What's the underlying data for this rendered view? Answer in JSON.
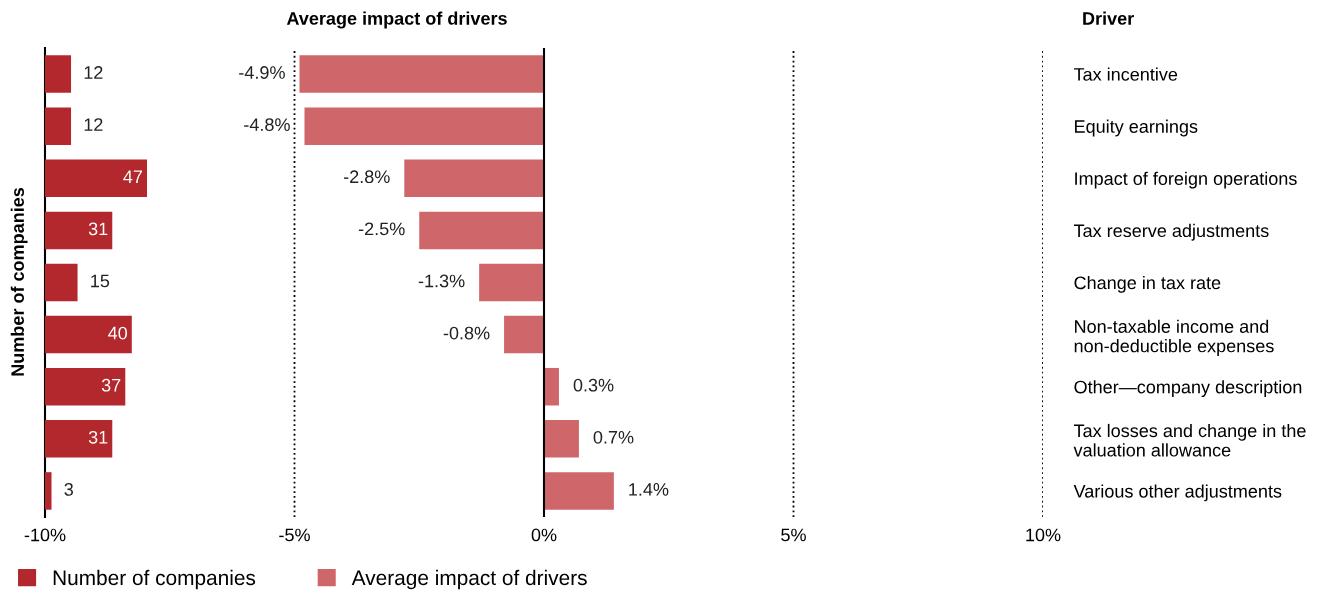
{
  "chart_data": [
    {
      "type": "bar",
      "orientation": "horizontal",
      "ylabel": "Number of companies",
      "legend": "bottom",
      "categories": [
        null,
        null,
        null,
        null,
        null,
        null,
        null,
        null,
        null
      ],
      "series": [
        {
          "name": "Number of companies",
          "color": "#b3282d",
          "values": [
            12,
            12,
            47,
            31,
            15,
            40,
            37,
            31,
            3
          ],
          "value_labels": [
            "12",
            "12",
            "47",
            "31",
            "15",
            "40",
            "37",
            "31",
            "3"
          ]
        }
      ]
    },
    {
      "type": "bar",
      "orientation": "horizontal",
      "title": "Average impact of drivers",
      "legend": "bottom left",
      "categories": [
        "Tax incentive",
        "Equity earnings",
        "Impact of foreign operations",
        "Tax reserve adjustments",
        "Change in tax rate",
        "Non-taxable income and\nnon-deductible expenses",
        "Other—company description",
        "Tax losses and change in the\nvaluation allowance",
        "Various other adjustments"
      ],
      "series": [
        {
          "name": "Average impact of drivers",
          "color": "#cf676a",
          "values": [
            -4.9,
            -4.8,
            -2.8,
            -2.5,
            -1.3,
            -0.8,
            0.3,
            0.7,
            1.4
          ],
          "value_labels": [
            "-4.9%",
            "-4.8%",
            "-2.8%",
            "-2.5%",
            "-1.3%",
            "-0.8%",
            "0.3%",
            "0.7%",
            "1.4%"
          ]
        }
      ],
      "xlim": [
        -10,
        10
      ],
      "xticks": [
        {
          "value": -10,
          "label": "-10%"
        },
        {
          "value": -5,
          "label": "-5%"
        },
        {
          "value": 0,
          "label": "0%"
        },
        {
          "value": 5,
          "label": "5%"
        },
        {
          "value": 10,
          "label": "10%"
        }
      ],
      "grid": "x",
      "line_style": "dotted",
      "ref_lines": [
        {
          "axis": "x",
          "value": 0,
          "color": "#000000",
          "line_style": "solid"
        }
      ],
      "annotations": [
        "Driver"
      ]
    }
  ]
}
